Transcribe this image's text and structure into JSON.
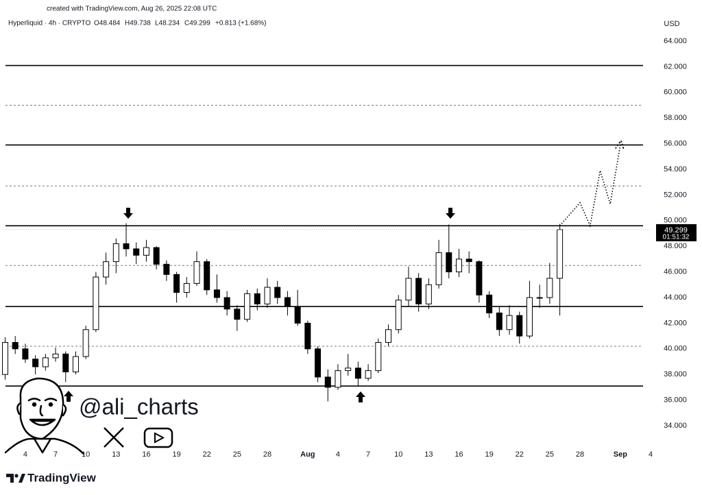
{
  "chart_data": {
    "type": "candlestick",
    "credit": "created with TradingView.com, Aug 26, 2025 22:08 UTC",
    "title": "Hyperliquid · 4h · CRYPTO",
    "ohlc_header": [
      "O48.484",
      "H49.738",
      "L48.234",
      "C49.299",
      "+0.813 (+1.68%)"
    ],
    "y_label": "USD",
    "watermark": "@ali_charts",
    "brand": "TradingView",
    "countdown": "01:51:32",
    "last_price": 49.299,
    "up_color": "#ffffff",
    "down_color": "#000000",
    "x": [
      "2025-07-02",
      "2025-07-03",
      "2025-07-04",
      "2025-07-05",
      "2025-07-06",
      "2025-07-07",
      "2025-07-08",
      "2025-07-09",
      "2025-07-10",
      "2025-07-11",
      "2025-07-12",
      "2025-07-13",
      "2025-07-14",
      "2025-07-15",
      "2025-07-16",
      "2025-07-17",
      "2025-07-18",
      "2025-07-19",
      "2025-07-20",
      "2025-07-21",
      "2025-07-22",
      "2025-07-23",
      "2025-07-24",
      "2025-07-25",
      "2025-07-26",
      "2025-07-27",
      "2025-07-28",
      "2025-07-29",
      "2025-07-30",
      "2025-07-31",
      "2025-08-01",
      "2025-08-02",
      "2025-08-03",
      "2025-08-04",
      "2025-08-05",
      "2025-08-06",
      "2025-08-07",
      "2025-08-08",
      "2025-08-09",
      "2025-08-10",
      "2025-08-11",
      "2025-08-12",
      "2025-08-13",
      "2025-08-14",
      "2025-08-15",
      "2025-08-16",
      "2025-08-17",
      "2025-08-18",
      "2025-08-19",
      "2025-08-20",
      "2025-08-21",
      "2025-08-22",
      "2025-08-23",
      "2025-08-24",
      "2025-08-25",
      "2025-08-26"
    ],
    "open": [
      38.0,
      40.5,
      40.0,
      39.2,
      38.6,
      39.3,
      39.6,
      38.2,
      39.4,
      41.5,
      45.6,
      46.8,
      48.2,
      47.8,
      47.3,
      47.9,
      46.6,
      45.8,
      44.4,
      45.1,
      46.8,
      44.6,
      44.0,
      43.1,
      42.3,
      44.3,
      43.5,
      44.8,
      44.0,
      43.3,
      42.0,
      40.0,
      37.8,
      37.0,
      38.3,
      38.5,
      37.7,
      38.3,
      40.5,
      41.5,
      43.8,
      45.5,
      43.5,
      45.0,
      47.5,
      46.0,
      47.0,
      46.8,
      44.2,
      42.8,
      41.5,
      42.6,
      41.0,
      44.0,
      44.0,
      45.5
    ],
    "high": [
      40.9,
      41.0,
      40.4,
      39.5,
      39.6,
      40.1,
      39.8,
      39.8,
      41.8,
      46.0,
      47.5,
      48.6,
      49.8,
      48.3,
      48.5,
      48.0,
      46.9,
      46.0,
      45.6,
      47.6,
      47.0,
      45.8,
      44.5,
      43.4,
      44.6,
      44.7,
      45.5,
      45.3,
      44.5,
      44.6,
      42.2,
      40.2,
      38.4,
      38.8,
      39.6,
      39.0,
      38.8,
      40.8,
      41.9,
      44.2,
      46.4,
      45.9,
      45.5,
      48.5,
      49.7,
      47.8,
      47.6,
      46.9,
      44.5,
      43.3,
      43.4,
      42.9,
      45.3,
      45.0,
      46.7,
      49.74
    ],
    "low": [
      37.6,
      39.6,
      38.9,
      38.0,
      38.3,
      39.0,
      37.4,
      38.0,
      39.2,
      41.3,
      45.0,
      45.9,
      47.2,
      46.6,
      46.8,
      46.2,
      45.3,
      43.6,
      44.0,
      44.9,
      44.2,
      43.6,
      42.6,
      41.4,
      42.1,
      43.0,
      43.2,
      43.5,
      42.6,
      41.8,
      39.6,
      37.4,
      35.9,
      36.8,
      37.9,
      37.1,
      37.5,
      38.1,
      40.2,
      41.2,
      43.3,
      42.9,
      43.1,
      44.7,
      45.5,
      45.6,
      45.9,
      43.6,
      42.4,
      41.0,
      41.1,
      40.4,
      40.8,
      43.2,
      43.5,
      42.6
    ],
    "close": [
      40.5,
      40.0,
      39.2,
      38.6,
      39.3,
      39.6,
      38.2,
      39.4,
      41.5,
      45.6,
      46.8,
      48.2,
      47.8,
      47.3,
      47.9,
      46.6,
      45.8,
      44.4,
      45.1,
      46.8,
      44.6,
      44.0,
      43.1,
      42.3,
      44.3,
      43.5,
      44.8,
      44.0,
      43.3,
      42.0,
      40.0,
      37.8,
      37.0,
      38.3,
      38.5,
      37.7,
      38.3,
      40.5,
      41.5,
      43.8,
      45.5,
      43.5,
      45.0,
      47.5,
      46.0,
      47.0,
      46.8,
      44.2,
      42.8,
      41.5,
      42.6,
      41.0,
      44.0,
      44.0,
      45.5,
      49.299
    ],
    "levels": [
      62.1,
      55.9,
      49.6,
      43.3,
      37.1
    ],
    "dashed_levels": [
      59.0,
      52.7,
      46.5,
      40.2
    ],
    "projection": {
      "x": [
        "2025-08-26",
        "2025-08-28",
        "2025-08-29",
        "2025-08-30",
        "2025-08-31",
        "2025-09-01"
      ],
      "values": [
        49.6,
        51.4,
        49.6,
        53.9,
        51.3,
        55.9
      ]
    },
    "xlim": [
      "2025-07-02",
      "2025-09-04"
    ],
    "ylim": [
      34,
      64
    ],
    "xticks": [
      {
        "value": "2025-07-04",
        "label": "4"
      },
      {
        "value": "2025-07-07",
        "label": "7"
      },
      {
        "value": "2025-07-10",
        "label": "10"
      },
      {
        "value": "2025-07-13",
        "label": "13"
      },
      {
        "value": "2025-07-16",
        "label": "16"
      },
      {
        "value": "2025-07-19",
        "label": "19"
      },
      {
        "value": "2025-07-22",
        "label": "22"
      },
      {
        "value": "2025-07-25",
        "label": "25"
      },
      {
        "value": "2025-07-28",
        "label": "28"
      },
      {
        "value": "2025-08-01",
        "label": "Aug"
      },
      {
        "value": "2025-08-04",
        "label": "4"
      },
      {
        "value": "2025-08-07",
        "label": "7"
      },
      {
        "value": "2025-08-10",
        "label": "10"
      },
      {
        "value": "2025-08-13",
        "label": "13"
      },
      {
        "value": "2025-08-16",
        "label": "16"
      },
      {
        "value": "2025-08-19",
        "label": "19"
      },
      {
        "value": "2025-08-22",
        "label": "22"
      },
      {
        "value": "2025-08-25",
        "label": "25"
      },
      {
        "value": "2025-08-28",
        "label": "28"
      },
      {
        "value": "2025-09-01",
        "label": "Sep"
      },
      {
        "value": "2025-09-04",
        "label": "4"
      }
    ],
    "yticks": [
      {
        "value": 34,
        "label": "34.000"
      },
      {
        "value": 36,
        "label": "36.000"
      },
      {
        "value": 38,
        "label": "38.000"
      },
      {
        "value": 40,
        "label": "40.000"
      },
      {
        "value": 42,
        "label": "42.000"
      },
      {
        "value": 44,
        "label": "44.000"
      },
      {
        "value": 46,
        "label": "46.000"
      },
      {
        "value": 48,
        "label": "48.000"
      },
      {
        "value": 50,
        "label": "50.000"
      },
      {
        "value": 52,
        "label": "52.000"
      },
      {
        "value": 54,
        "label": "54.000"
      },
      {
        "value": 56,
        "label": "56.000"
      },
      {
        "value": 58,
        "label": "58.000"
      },
      {
        "value": 60,
        "label": "60.000"
      },
      {
        "value": 62,
        "label": "62.000"
      },
      {
        "value": 64,
        "label": "64.000"
      }
    ]
  }
}
